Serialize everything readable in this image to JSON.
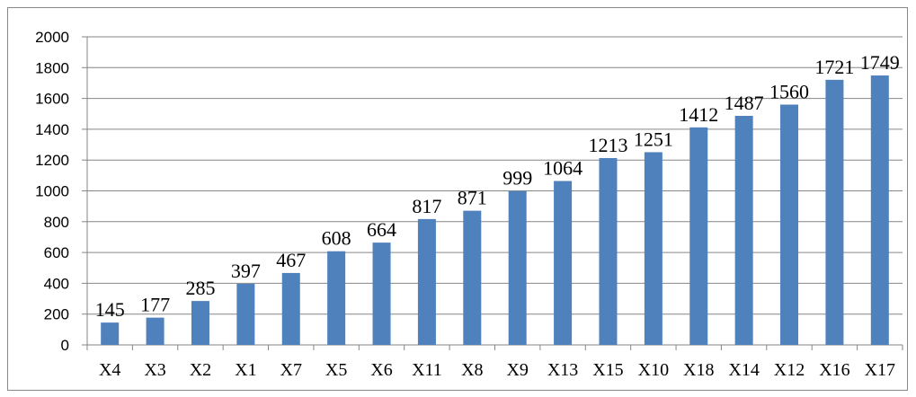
{
  "chart_data": {
    "type": "bar",
    "categories": [
      "X4",
      "X3",
      "X2",
      "X1",
      "X7",
      "X5",
      "X6",
      "X11",
      "X8",
      "X9",
      "X13",
      "X15",
      "X10",
      "X18",
      "X14",
      "X12",
      "X16",
      "X17"
    ],
    "values": [
      145,
      177,
      285,
      397,
      467,
      608,
      664,
      817,
      871,
      999,
      1064,
      1213,
      1251,
      1412,
      1487,
      1560,
      1721,
      1749
    ],
    "ylim": [
      0,
      2000
    ],
    "yticks": [
      0,
      200,
      400,
      600,
      800,
      1000,
      1200,
      1400,
      1600,
      1800,
      2000
    ],
    "grid": true,
    "legend": "none",
    "bar_color": "#4F81BD",
    "gridline_color": "#868686"
  }
}
